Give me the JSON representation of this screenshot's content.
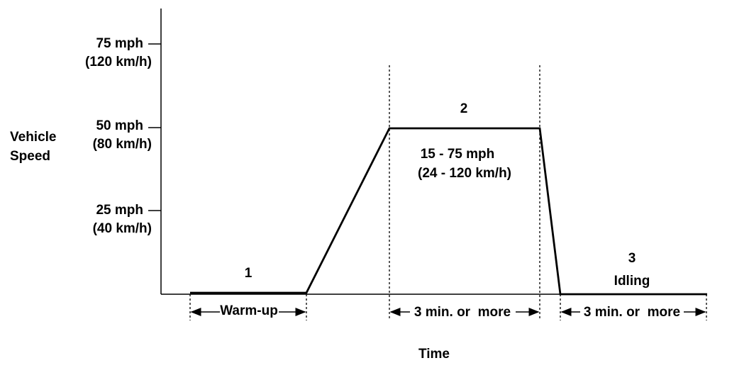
{
  "y_axis": {
    "label": [
      "Vehicle",
      "Speed"
    ],
    "ticks": [
      {
        "mph": "75 mph",
        "kmh": "(120 km/h)"
      },
      {
        "mph": "50 mph",
        "kmh": "(80 km/h)"
      },
      {
        "mph": "25 mph",
        "kmh": "(40 km/h)"
      }
    ]
  },
  "x_axis": {
    "label": "Time"
  },
  "phases": [
    {
      "number": "1",
      "duration": "Warm-up"
    },
    {
      "number": "2",
      "range": [
        "15 - 75 mph",
        "(24 - 120 km/h)"
      ],
      "duration": "3 min. or  more"
    },
    {
      "number": "3",
      "name": "Idling",
      "duration": "3 min. or  more"
    }
  ]
}
